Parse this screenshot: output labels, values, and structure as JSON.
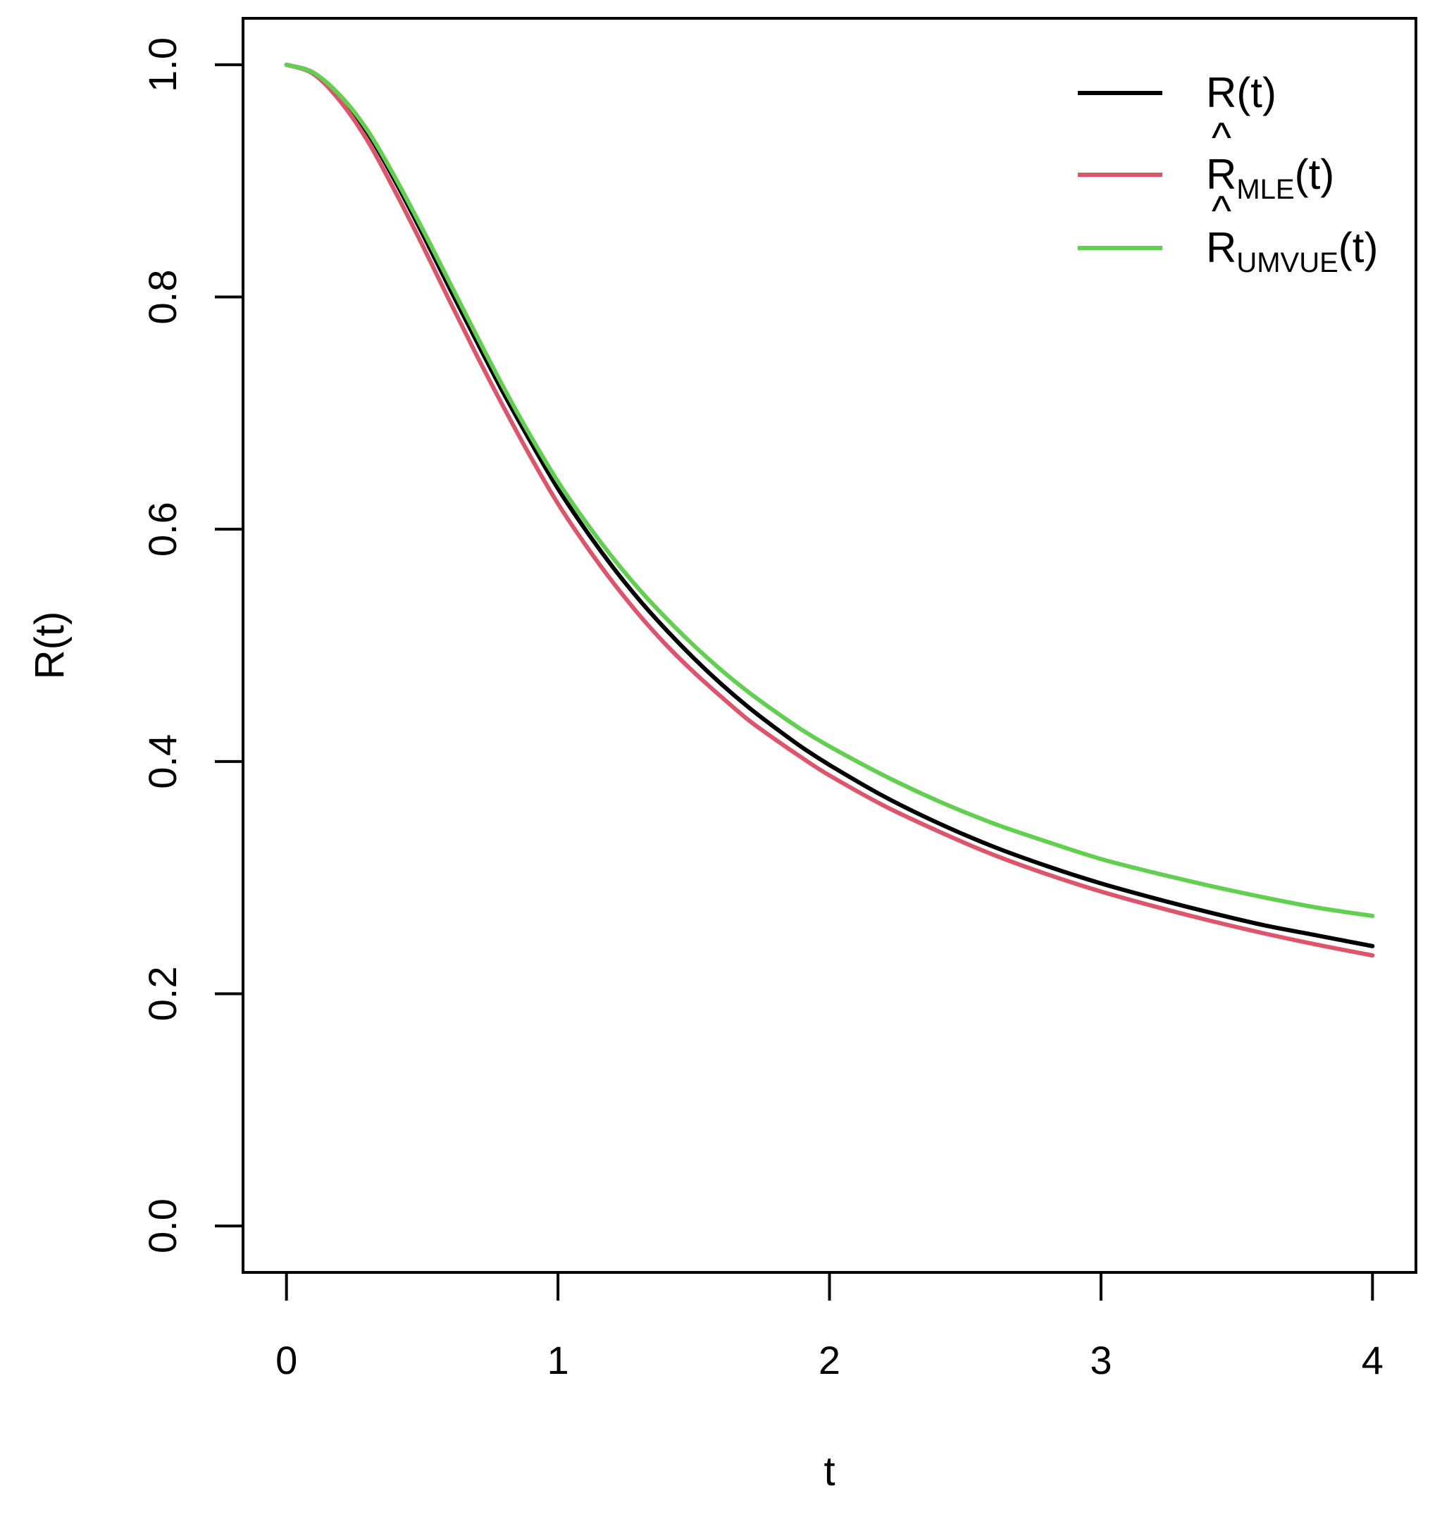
{
  "chart_data": {
    "type": "line",
    "xlabel": "t",
    "ylabel": "R(t)",
    "xlim": [
      -0.16,
      4.16
    ],
    "ylim": [
      -0.04,
      1.04
    ],
    "x_ticks": [
      0,
      1,
      2,
      3,
      4
    ],
    "x_tick_labels": [
      "0",
      "1",
      "2",
      "3",
      "4"
    ],
    "y_ticks": [
      0.0,
      0.2,
      0.4,
      0.6,
      0.8,
      1.0
    ],
    "y_tick_labels": [
      "0.0",
      "0.2",
      "0.4",
      "0.6",
      "0.8",
      "1.0"
    ],
    "grid": false,
    "legend_position": "top-right",
    "x": [
      0,
      0.1,
      0.2,
      0.3,
      0.4,
      0.5,
      0.6,
      0.7,
      0.8,
      0.9,
      1.0,
      1.1,
      1.2,
      1.3,
      1.4,
      1.5,
      1.6,
      1.7,
      1.8,
      1.9,
      2.0,
      2.2,
      2.4,
      2.6,
      2.8,
      3.0,
      3.2,
      3.4,
      3.6,
      3.8,
      4.0
    ],
    "series": [
      {
        "name": "R(t)",
        "color": "#000000",
        "values": [
          1.0,
          0.993,
          0.972,
          0.941,
          0.9,
          0.855,
          0.808,
          0.762,
          0.717,
          0.675,
          0.635,
          0.6,
          0.568,
          0.539,
          0.513,
          0.489,
          0.467,
          0.447,
          0.429,
          0.412,
          0.397,
          0.37,
          0.347,
          0.327,
          0.31,
          0.295,
          0.282,
          0.27,
          0.259,
          0.25,
          0.241
        ]
      },
      {
        "name": "R̂_MLE(t)",
        "name_base": "R",
        "name_hat": "^",
        "name_sub": "MLE",
        "name_tail": "(t)",
        "color": "#df536b",
        "values": [
          1.0,
          0.992,
          0.968,
          0.934,
          0.891,
          0.845,
          0.797,
          0.75,
          0.705,
          0.662,
          0.622,
          0.587,
          0.555,
          0.526,
          0.5,
          0.477,
          0.456,
          0.436,
          0.419,
          0.403,
          0.388,
          0.362,
          0.34,
          0.32,
          0.303,
          0.288,
          0.275,
          0.263,
          0.252,
          0.242,
          0.233
        ]
      },
      {
        "name": "R̂_UMVUE(t)",
        "name_base": "R",
        "name_hat": "^",
        "name_sub": "UMVUE",
        "name_tail": "(t)",
        "color": "#61d04f",
        "values": [
          1.0,
          0.993,
          0.973,
          0.943,
          0.903,
          0.859,
          0.813,
          0.767,
          0.722,
          0.68,
          0.641,
          0.607,
          0.576,
          0.548,
          0.523,
          0.5,
          0.479,
          0.46,
          0.443,
          0.427,
          0.413,
          0.388,
          0.366,
          0.347,
          0.331,
          0.316,
          0.304,
          0.293,
          0.283,
          0.274,
          0.267
        ]
      }
    ]
  }
}
